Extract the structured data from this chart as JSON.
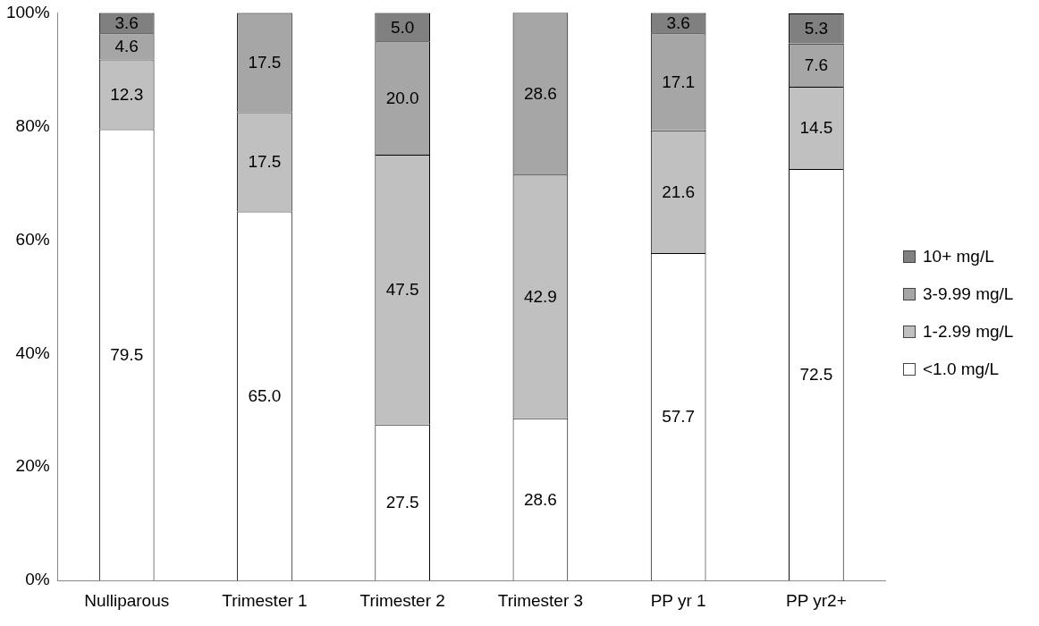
{
  "chart_data": {
    "type": "bar",
    "stacked": true,
    "legend": "right",
    "grid": false,
    "categories": [
      "Nulliparous",
      "Trimester 1",
      "Trimester 2",
      "Trimester 3",
      "PP yr 1",
      "PP yr2+"
    ],
    "ylim": [
      0,
      100
    ],
    "yticks": [
      {
        "value": 0,
        "label": "0%"
      },
      {
        "value": 20,
        "label": "20%"
      },
      {
        "value": 40,
        "label": "40%"
      },
      {
        "value": 60,
        "label": "60%"
      },
      {
        "value": 80,
        "label": "80%"
      },
      {
        "value": 100,
        "label": "100%"
      }
    ],
    "series": [
      {
        "name": "<1.0 mg/L",
        "color": "#ffffff",
        "values": [
          79.5,
          65.0,
          27.5,
          28.6,
          57.7,
          72.5
        ],
        "value_labels": [
          "79.5",
          "65.0",
          "27.5",
          "28.6",
          "57.7",
          "72.5"
        ]
      },
      {
        "name": "1-2.99 mg/L",
        "color": "#c0c0c0",
        "values": [
          12.3,
          17.5,
          47.5,
          42.9,
          21.6,
          14.5
        ],
        "value_labels": [
          "12.3",
          "17.5",
          "47.5",
          "42.9",
          "21.6",
          "14.5"
        ]
      },
      {
        "name": "3-9.99 mg/L",
        "color": "#a6a6a6",
        "values": [
          4.6,
          17.5,
          20.0,
          28.6,
          17.1,
          7.6
        ],
        "value_labels": [
          "4.6",
          "17.5",
          "20.0",
          "28.6",
          "17.1",
          "7.6"
        ]
      },
      {
        "name": "10+ mg/L",
        "color": "#808080",
        "values": [
          3.6,
          null,
          5.0,
          null,
          3.6,
          5.3
        ],
        "value_labels": [
          "3.6",
          null,
          "5.0",
          null,
          "3.6",
          "5.3"
        ]
      }
    ]
  }
}
